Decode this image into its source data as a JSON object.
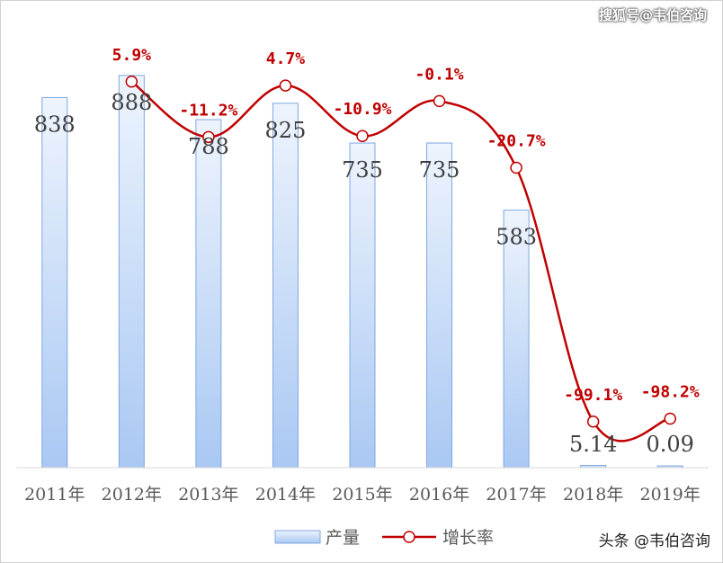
{
  "watermark_top": "搜狐号@韦伯咨询",
  "watermark_bottom": "头条 @韦伯咨询",
  "colors": {
    "bar_top": "#eef4fd",
    "bar_bottom": "#a9c8f3",
    "bar_stroke": "#7fa8e0",
    "line": "#c00000",
    "line_label": "#c00000",
    "bar_label": "#404040",
    "axis_text": "#595959"
  },
  "chart_data": {
    "type": "bar+line",
    "categories": [
      "2011年",
      "2012年",
      "2013年",
      "2014年",
      "2015年",
      "2016年",
      "2017年",
      "2018年",
      "2019年"
    ],
    "series": [
      {
        "name": "产量",
        "type": "bar",
        "values": [
          838,
          888,
          788,
          825,
          735,
          735,
          583,
          5.14,
          0.09
        ],
        "labels": [
          "838",
          "888",
          "788",
          "825",
          "735",
          "735",
          "583",
          "5.14",
          "0.09"
        ]
      },
      {
        "name": "增长率",
        "type": "line",
        "unit": "%",
        "values": [
          null,
          5.9,
          -11.2,
          4.7,
          -10.9,
          -0.1,
          -20.7,
          -99.1,
          -98.2
        ],
        "labels": [
          "",
          "5.9%",
          "-11.2%",
          "4.7%",
          "-10.9%",
          "-0.1%",
          "-20.7%",
          "-99.1%",
          "-98.2%"
        ]
      }
    ],
    "legend": [
      "产量",
      "增长率"
    ],
    "legend_position": "bottom"
  }
}
